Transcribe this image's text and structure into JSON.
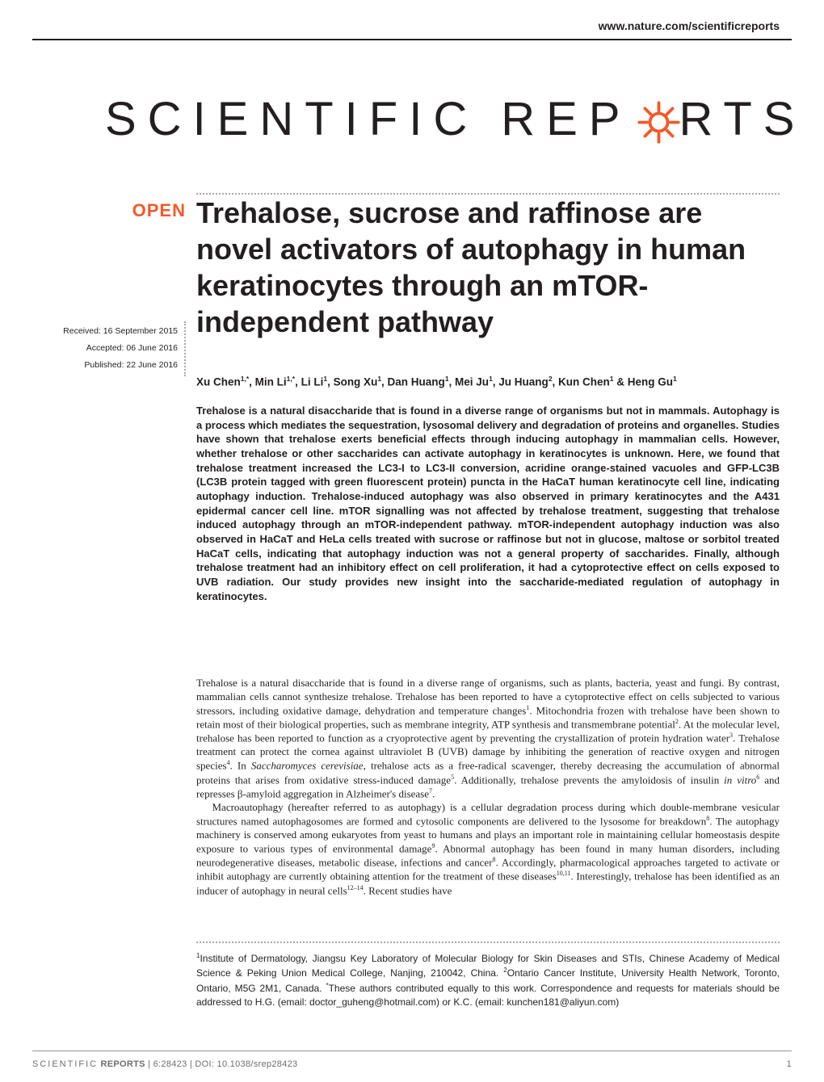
{
  "header": {
    "journal_url": "www.nature.com/scientificreports"
  },
  "logo": {
    "part1": "SCIENTIFIC",
    "part2": "REP",
    "part3": "RTS"
  },
  "badge": {
    "open": "OPEN"
  },
  "dates": {
    "received": "Received: 16 September 2015",
    "accepted": "Accepted: 06 June 2016",
    "published": "Published: 22 June 2016"
  },
  "title": "Trehalose, sucrose and raffinose are novel activators of autophagy in human keratinocytes through an mTOR-independent pathway",
  "authors_html": "Xu Chen<sup>1,*</sup>, Min Li<sup>1,*</sup>, Li Li<sup>1</sup>, Song Xu<sup>1</sup>, Dan Huang<sup>1</sup>, Mei Ju<sup>1</sup>, Ju Huang<sup>2</sup>, Kun Chen<sup>1</sup> & Heng Gu<sup>1</sup>",
  "abstract": "Trehalose is a natural disaccharide that is found in a diverse range of organisms but not in mammals. Autophagy is a process which mediates the sequestration, lysosomal delivery and degradation of proteins and organelles. Studies have shown that trehalose exerts beneficial effects through inducing autophagy in mammalian cells. However, whether trehalose or other saccharides can activate autophagy in keratinocytes is unknown. Here, we found that trehalose treatment increased the LC3-I to LC3-II conversion, acridine orange-stained vacuoles and GFP-LC3B (LC3B protein tagged with green fluorescent protein) puncta in the HaCaT human keratinocyte cell line, indicating autophagy induction. Trehalose-induced autophagy was also observed in primary keratinocytes and the A431 epidermal cancer cell line. mTOR signalling was not affected by trehalose treatment, suggesting that trehalose induced autophagy through an mTOR-independent pathway. mTOR-independent autophagy induction was also observed in HaCaT and HeLa cells treated with sucrose or raffinose but not in glucose, maltose or sorbitol treated HaCaT cells, indicating that autophagy induction was not a general property of saccharides. Finally, although trehalose treatment had an inhibitory effect on cell proliferation, it had a cytoprotective effect on cells exposed to UVB radiation. Our study provides new insight into the saccharide-mediated regulation of autophagy in keratinocytes.",
  "body": {
    "p1_html": "Trehalose is a natural disaccharide that is found in a diverse range of organisms, such as plants, bacteria, yeast and fungi. By contrast, mammalian cells cannot synthesize trehalose. Trehalose has been reported to have a cytoprotective effect on cells subjected to various stressors, including oxidative damage, dehydration and temperature changes<sup>1</sup>. Mitochondria frozen with trehalose have been shown to retain most of their biological properties, such as membrane integrity, ATP synthesis and transmembrane potential<sup>2</sup>. At the molecular level, trehalose has been reported to function as a cryoprotective agent by preventing the crystallization of protein hydration water<sup>3</sup>. Trehalose treatment can protect the cornea against ultraviolet B (UVB) damage by inhibiting the generation of reactive oxygen and nitrogen species<sup>4</sup>. In <i>Saccharomyces cerevisiae</i>, trehalose acts as a free-radical scavenger, thereby decreasing the accumulation of abnormal proteins that arises from oxidative stress-induced damage<sup>5</sup>. Additionally, trehalose prevents the amyloidosis of insulin <i>in vitro</i><sup>6</sup> and represses β-amyloid aggregation in Alzheimer's disease<sup>7</sup>.",
    "p2_html": "Macroautophagy (hereafter referred to as autophagy) is a cellular degradation process during which double-membrane vesicular structures named autophagosomes are formed and cytosolic components are delivered to the lysosome for breakdown<sup>8</sup>. The autophagy machinery is conserved among eukaryotes from yeast to humans and plays an important role in maintaining cellular homeostasis despite exposure to various types of environmental damage<sup>9</sup>. Abnormal autophagy has been found in many human disorders, including neurodegenerative diseases, metabolic disease, infections and cancer<sup>8</sup>. Accordingly, pharmacological approaches targeted to activate or inhibit autophagy are currently obtaining attention for the treatment of these diseases<sup>10,11</sup>. Interestingly, trehalose has been identified as an inducer of autophagy in neural cells<sup>12–14</sup>. Recent studies have"
  },
  "affiliations_html": "<sup>1</sup>Institute of Dermatology, Jiangsu Key Laboratory of Molecular Biology for Skin Diseases and STIs, Chinese Academy of Medical Science & Peking Union Medical College, Nanjing, 210042, China. <sup>2</sup>Ontario Cancer Institute, University Health Network, Toronto, Ontario, M5G 2M1, Canada. <sup>*</sup>These authors contributed equally to this work. Correspondence and requests for materials should be addressed to H.G. (email: doctor_guheng@hotmail.com)  or K.C. (email: kunchen181@aliyun.com)",
  "footer": {
    "citation_prefix": "SCIENTIFIC",
    "citation_bold": "REPORTS",
    "citation_rest": " | 6:28423 | DOI: 10.1038/srep28423",
    "page": "1"
  },
  "colors": {
    "text": "#231f20",
    "accent": "#f15a29",
    "rule_grey": "#a7a9ac",
    "footer_grey": "#6d6e71",
    "background": "#ffffff"
  },
  "typography": {
    "title_fontsize_pt": 36,
    "abstract_fontsize_pt": 13,
    "body_fontsize_pt": 13,
    "affil_fontsize_pt": 12,
    "footer_fontsize_pt": 11
  }
}
